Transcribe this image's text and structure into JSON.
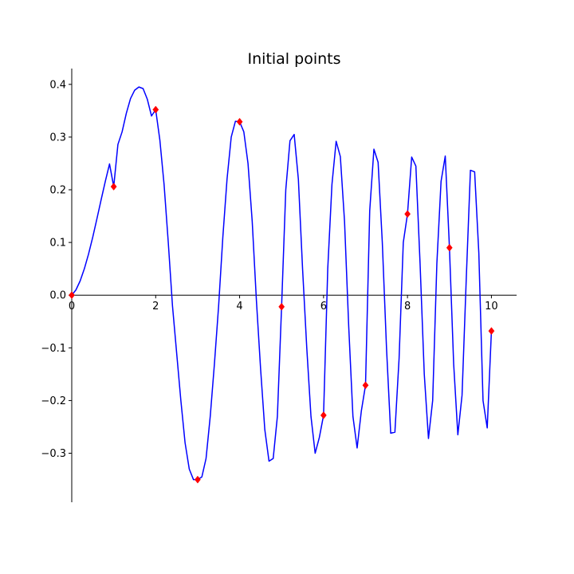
{
  "chart_data": {
    "type": "line",
    "title": "Initial points",
    "xlabel": "",
    "ylabel": "",
    "xlim": [
      0,
      10.6
    ],
    "ylim": [
      -0.393,
      0.43
    ],
    "x_ticks": [
      0,
      2,
      4,
      6,
      8,
      10
    ],
    "x_tick_labels": [
      "0",
      "2",
      "4",
      "6",
      "8",
      "10"
    ],
    "y_ticks": [
      0.4,
      0.3,
      0.2,
      0.1,
      0.0,
      -0.1,
      -0.2,
      -0.3
    ],
    "y_tick_labels": [
      "0.4",
      "0.3",
      "0.2",
      "0.1",
      "0.0",
      "−0.1",
      "−0.2",
      "−0.3"
    ],
    "grid": false,
    "spines": "centered-at-zero",
    "series": [
      {
        "kind": "line",
        "color": "#0000ff",
        "x": [
          0,
          0.1,
          0.2,
          0.3,
          0.4,
          0.5,
          0.6,
          0.7,
          0.8,
          0.9,
          1.0,
          1.1,
          1.2,
          1.3,
          1.4,
          1.5,
          1.6,
          1.7,
          1.8,
          1.9,
          2.0,
          2.1,
          2.2,
          2.3,
          2.4,
          2.5,
          2.6,
          2.7,
          2.8,
          2.9,
          3.0,
          3.1,
          3.2,
          3.3,
          3.4,
          3.5,
          3.6,
          3.7,
          3.8,
          3.9,
          4.0,
          4.1,
          4.2,
          4.3,
          4.4,
          4.5,
          4.6,
          4.7,
          4.8,
          4.9,
          5.0,
          5.1,
          5.2,
          5.3,
          5.4,
          5.5,
          5.6,
          5.7,
          5.8,
          5.9,
          6.0,
          6.1,
          6.2,
          6.3,
          6.4,
          6.5,
          6.6,
          6.7,
          6.8,
          6.9,
          7.0,
          7.1,
          7.2,
          7.3,
          7.4,
          7.5,
          7.6,
          7.7,
          7.8,
          7.9,
          8.0,
          8.1,
          8.2,
          8.3,
          8.4,
          8.5,
          8.6,
          8.7,
          8.8,
          8.9,
          9.0,
          9.1,
          9.2,
          9.3,
          9.4,
          9.5,
          9.6,
          9.7,
          9.8,
          9.9,
          10.0
        ],
        "y": [
          0.0,
          0.01,
          0.027,
          0.05,
          0.078,
          0.11,
          0.145,
          0.181,
          0.216,
          0.249,
          0.206,
          0.286,
          0.31,
          0.345,
          0.373,
          0.389,
          0.395,
          0.392,
          0.372,
          0.34,
          0.352,
          0.294,
          0.21,
          0.1,
          -0.02,
          -0.11,
          -0.2,
          -0.28,
          -0.33,
          -0.35,
          -0.35,
          -0.345,
          -0.31,
          -0.23,
          -0.13,
          -0.02,
          0.11,
          0.22,
          0.3,
          0.33,
          0.329,
          0.31,
          0.25,
          0.14,
          -0.01,
          -0.14,
          -0.255,
          -0.315,
          -0.31,
          -0.23,
          -0.022,
          0.2,
          0.293,
          0.305,
          0.22,
          0.05,
          -0.1,
          -0.23,
          -0.3,
          -0.27,
          -0.228,
          0.05,
          0.21,
          0.292,
          0.263,
          0.14,
          -0.06,
          -0.23,
          -0.29,
          -0.22,
          -0.171,
          0.16,
          0.277,
          0.252,
          0.1,
          -0.1,
          -0.262,
          -0.26,
          -0.12,
          0.1,
          0.154,
          0.262,
          0.245,
          0.06,
          -0.15,
          -0.272,
          -0.2,
          0.06,
          0.216,
          0.264,
          0.09,
          -0.13,
          -0.265,
          -0.19,
          0.03,
          0.237,
          0.234,
          0.08,
          -0.2,
          -0.252,
          -0.068
        ]
      },
      {
        "kind": "scatter",
        "marker": "diamond",
        "color": "#ff0000",
        "x": [
          0,
          1,
          2,
          3,
          4,
          5,
          6,
          7,
          8,
          9,
          10
        ],
        "y": [
          0.0,
          0.206,
          0.352,
          -0.35,
          0.329,
          -0.022,
          -0.228,
          -0.171,
          0.154,
          0.09,
          -0.068
        ]
      }
    ]
  }
}
